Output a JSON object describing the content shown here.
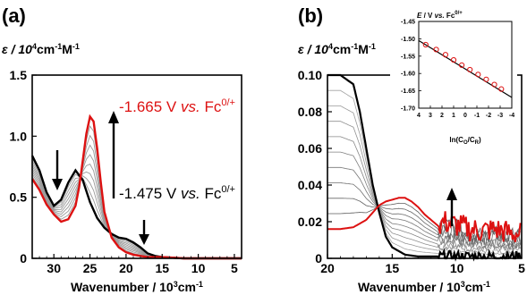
{
  "chart_data": [
    {
      "type": "line",
      "panel_label": "(a)",
      "ylabel_prefix": "ε / 10",
      "ylabel_exp1": "4",
      "ylabel_mid": "cm",
      "ylabel_exp2": "-1",
      "ylabel_tail": "M",
      "ylabel_exp3": "-1",
      "xlabel_main": "Wavenumber / 10",
      "xlabel_exp": "3",
      "xlabel_unit": "cm",
      "xlabel_exp2": "-1",
      "xlim": [
        33,
        4
      ],
      "ylim": [
        0,
        1.5
      ],
      "xticks": [
        30,
        25,
        20,
        15,
        10,
        5
      ],
      "yticks": [
        0,
        0.5,
        1.0,
        1.5
      ],
      "ytick_labels": [
        "0",
        "0.5",
        "1.0",
        "1.5"
      ],
      "annotation_red": {
        "pre": "-1.665 V ",
        "vs": "vs.",
        "post": " Fc",
        "sup": "0/+"
      },
      "annotation_black": {
        "pre": "-1.475 V ",
        "vs": "vs.",
        "post": " Fc",
        "sup": "0/+"
      },
      "colors": {
        "initial": "#000000",
        "final": "#dd1111",
        "intermediate": "#9a9a9a"
      },
      "series": [
        {
          "role": "initial",
          "x": [
            33,
            32,
            31,
            30,
            29,
            28,
            27,
            26,
            25,
            24,
            23,
            22,
            21,
            20,
            19,
            18,
            17,
            16,
            15,
            12,
            8,
            4
          ],
          "values": [
            0.84,
            0.72,
            0.54,
            0.43,
            0.48,
            0.62,
            0.72,
            0.64,
            0.46,
            0.33,
            0.25,
            0.2,
            0.17,
            0.16,
            0.13,
            0.09,
            0.04,
            0.02,
            0.01,
            0.0,
            0.0,
            0.0
          ]
        },
        {
          "role": "final",
          "x": [
            33,
            32,
            31,
            30,
            29,
            28,
            27,
            26.5,
            26,
            25.5,
            25,
            24.5,
            24,
            23.5,
            23,
            22,
            21,
            20,
            19,
            18,
            17,
            16,
            15,
            12,
            8,
            4
          ],
          "values": [
            0.65,
            0.56,
            0.44,
            0.36,
            0.3,
            0.32,
            0.43,
            0.58,
            0.8,
            1.02,
            1.16,
            1.12,
            0.9,
            0.62,
            0.38,
            0.17,
            0.09,
            0.05,
            0.03,
            0.02,
            0.01,
            0.01,
            0.01,
            0.0,
            0.0,
            0.0
          ]
        }
      ]
    },
    {
      "type": "line",
      "panel_label": "(b)",
      "ylabel_prefix": "ε / 10",
      "ylabel_exp1": "4",
      "ylabel_mid": "cm",
      "ylabel_exp2": "-1",
      "ylabel_tail": "M",
      "ylabel_exp3": "-1",
      "xlabel_main": "Wavenumber / 10",
      "xlabel_exp": "3",
      "xlabel_unit": "cm",
      "xlabel_exp2": "-1",
      "xlim": [
        20,
        5
      ],
      "ylim": [
        0,
        0.1
      ],
      "xticks": [
        20,
        15,
        10,
        5
      ],
      "yticks": [
        0,
        0.02,
        0.04,
        0.06,
        0.08,
        0.1
      ],
      "ytick_labels": [
        "0",
        "0.02",
        "0.04",
        "0.06",
        "0.08",
        "0.10"
      ],
      "series": [
        {
          "role": "initial",
          "x": [
            20,
            19,
            18,
            17.5,
            17,
            16.5,
            16,
            15.5,
            15,
            14,
            13,
            12,
            11,
            10,
            9,
            8,
            7,
            6,
            5
          ],
          "values": [
            0.1,
            0.1,
            0.095,
            0.08,
            0.06,
            0.04,
            0.025,
            0.012,
            0.006,
            0.002,
            0.001,
            0.001,
            0.001,
            0.001,
            0.001,
            0.001,
            0.001,
            0.001,
            0.001
          ]
        },
        {
          "role": "final",
          "x": [
            20,
            19,
            18,
            17,
            16.5,
            16,
            15.5,
            15,
            14.5,
            14,
            13.5,
            13,
            12.5,
            12,
            11.5,
            11,
            10,
            9,
            8,
            7,
            6,
            5
          ],
          "values": [
            0.016,
            0.016,
            0.017,
            0.021,
            0.025,
            0.029,
            0.031,
            0.032,
            0.033,
            0.033,
            0.031,
            0.028,
            0.024,
            0.021,
            0.018,
            0.02,
            0.018,
            0.016,
            0.015,
            0.016,
            0.014,
            0.013
          ]
        }
      ]
    },
    {
      "type": "scatter",
      "panel_label": "inset",
      "title_pre": "E",
      "title_mid": " / V ",
      "title_vs": "vs.",
      "title_post": " Fc",
      "title_sup": "0/+",
      "xlabel": "ln(C",
      "xlabel_sub1": "O",
      "xlabel_slash": "/C",
      "xlabel_sub2": "R",
      "xlabel_close": ")",
      "xlim": [
        4,
        -4
      ],
      "ylim": [
        -1.7,
        -1.45
      ],
      "xticks": [
        4,
        3,
        2,
        1,
        0,
        -1,
        -2,
        -3,
        -4
      ],
      "yticks": [
        -1.45,
        -1.5,
        -1.55,
        -1.6,
        -1.65,
        -1.7
      ],
      "ytick_labels": [
        "-1.45",
        "-1.50",
        "-1.55",
        "-1.60",
        "-1.65",
        "-1.70"
      ],
      "points_x": [
        3.4,
        2.5,
        1.7,
        1.0,
        0.3,
        -0.4,
        -1.1,
        -1.8,
        -2.5,
        -3.1
      ],
      "points_y": [
        -1.517,
        -1.531,
        -1.546,
        -1.561,
        -1.576,
        -1.589,
        -1.603,
        -1.617,
        -1.632,
        -1.645
      ],
      "fit_x": [
        4,
        -4
      ],
      "fit_y": [
        -1.505,
        -1.669
      ]
    }
  ]
}
